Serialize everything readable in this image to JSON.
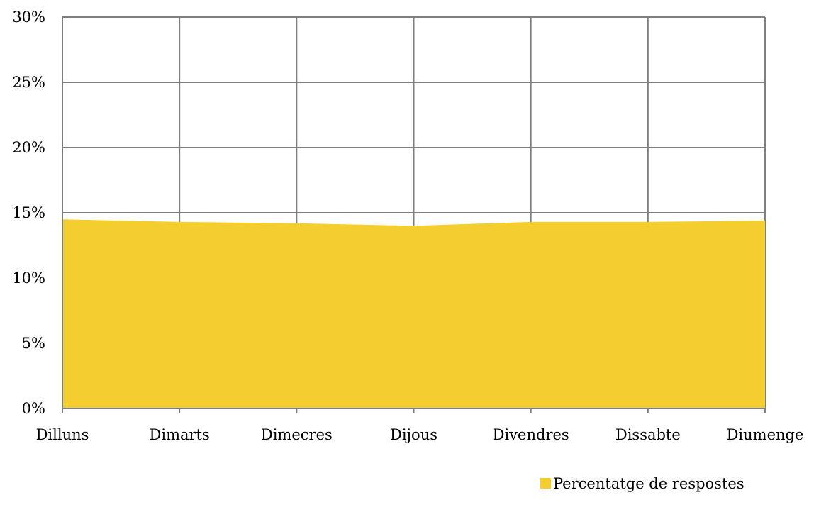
{
  "chart_data": {
    "type": "area",
    "categories": [
      "Dilluns",
      "Dimarts",
      "Dimecres",
      "Dijous",
      "Divendres",
      "Dissabte",
      "Diumenge"
    ],
    "series": [
      {
        "name": "Percentatge de respostes",
        "values": [
          14.5,
          14.3,
          14.2,
          14.0,
          14.3,
          14.3,
          14.4
        ],
        "color": "#F4CD2E"
      }
    ],
    "y_ticks": [
      "0%",
      "5%",
      "10%",
      "15%",
      "20%",
      "25%",
      "30%"
    ],
    "ylim": [
      0,
      30
    ],
    "grid": true,
    "legend_position": "bottom-right",
    "gridline_color": "#7f7f7f"
  }
}
